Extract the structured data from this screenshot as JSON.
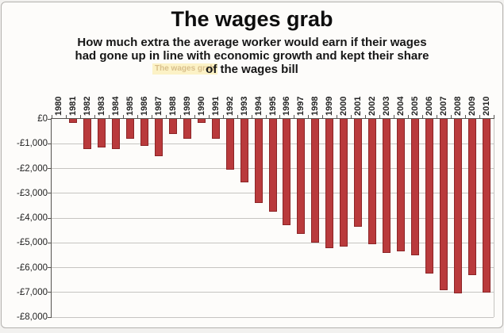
{
  "frame": {
    "background": "#fdfcfa",
    "border_color": "#b3b1ae"
  },
  "watermark_text": "The wages grab",
  "chart_data": {
    "type": "bar",
    "title": "The wages grab",
    "subtitle_lines": [
      "How much extra the average worker would earn if their wages",
      "had gone up in line with economic growth and kept their share",
      "of the wages bill"
    ],
    "categories": [
      "1980",
      "1981",
      "1982",
      "1983",
      "1984",
      "1985",
      "1986",
      "1987",
      "1988",
      "1989",
      "1990",
      "1991",
      "1992",
      "1993",
      "1994",
      "1995",
      "1996",
      "1997",
      "1998",
      "1999",
      "2000",
      "2001",
      "2002",
      "2003",
      "2004",
      "2005",
      "2006",
      "2007",
      "2008",
      "2009",
      "2010"
    ],
    "values": [
      0,
      -150,
      -1200,
      -1150,
      -1200,
      -800,
      -1100,
      -1500,
      -600,
      -800,
      -150,
      -800,
      -2050,
      -2550,
      -3400,
      -3750,
      -4300,
      -4650,
      -5000,
      -5200,
      -5150,
      -4350,
      -5050,
      -5400,
      -5350,
      -5500,
      -6250,
      -6900,
      -7050,
      -6300,
      -7000
    ],
    "ylabel": "",
    "xlabel": "",
    "ylim": [
      -8000,
      0
    ],
    "y_tick_values": [
      0,
      -1000,
      -2000,
      -3000,
      -4000,
      -5000,
      -6000,
      -7000,
      -8000
    ],
    "y_tick_labels": [
      "£0",
      "-£1,000",
      "-£2,000",
      "-£3,000",
      "-£4,000",
      "-£5,000",
      "-£6,000",
      "-£7,000",
      "-£8,000"
    ],
    "grid": true,
    "legend": "none",
    "colors": {
      "bar_fill": "#b93a3c",
      "bar_border": "#8c2527",
      "gridline": "#c6c4c1",
      "axis": "#55534f",
      "text": "#1f1f1f",
      "watermark_bg": "#fcf2c6",
      "watermark_text": "#d9bf8b"
    }
  }
}
